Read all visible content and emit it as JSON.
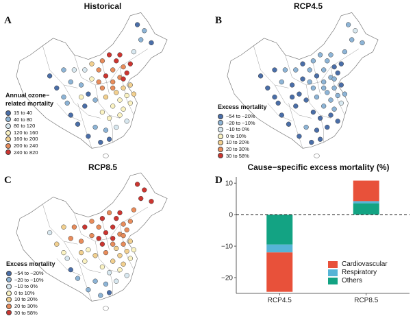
{
  "panels": {
    "A": {
      "letter": "A",
      "title": "Historical"
    },
    "B": {
      "letter": "B",
      "title": "RCP4.5"
    },
    "C": {
      "letter": "C",
      "title": "RCP8.5"
    },
    "D": {
      "letter": "D",
      "title": "Cause−specific excess mortality (%)"
    }
  },
  "legend_historical": {
    "title_lines": [
      "Annual ozone−",
      "related mortality"
    ],
    "items": [
      {
        "label": "15 to 40",
        "color": "#4a6ea8"
      },
      {
        "label": "40 to 80",
        "color": "#8db4d6"
      },
      {
        "label": "80 to 120",
        "color": "#d8e8f0"
      },
      {
        "label": "120 to 160",
        "color": "#fbf3c2"
      },
      {
        "label": "160 to 200",
        "color": "#f2d08f"
      },
      {
        "label": "200 to 240",
        "color": "#e88c5b"
      },
      {
        "label": "240 to 820",
        "color": "#cc3530"
      }
    ]
  },
  "legend_excess": {
    "title": "Excess mortality",
    "items": [
      {
        "label": "−54 to −20%",
        "color": "#4a6ea8"
      },
      {
        "label": "−20 to −10%",
        "color": "#8db4d6"
      },
      {
        "label": "−10 to 0%",
        "color": "#d8e8f0"
      },
      {
        "label": "0 to 10%",
        "color": "#fbf3c2"
      },
      {
        "label": "10 to 20%",
        "color": "#f2d08f"
      },
      {
        "label": "20 to 30%",
        "color": "#e88c5b"
      },
      {
        "label": "30 to 58%",
        "color": "#cc3530"
      }
    ]
  },
  "chart_data": {
    "type": "bar",
    "title": "Cause−specific excess mortality (%)",
    "categories": [
      "RCP4.5",
      "RCP8.5"
    ],
    "stacked": true,
    "series": [
      {
        "name": "Cardiovascular",
        "color": "#e8513a",
        "values": [
          -12.5,
          6.5
        ]
      },
      {
        "name": "Respiratory",
        "color": "#56b4d6",
        "values": [
          -2.5,
          0.7
        ]
      },
      {
        "name": "Others",
        "color": "#13a383",
        "values": [
          -9.5,
          3.6
        ]
      }
    ],
    "stack_order": [
      "Others",
      "Respiratory",
      "Cardiovascular"
    ],
    "ylim": [
      -25,
      12
    ],
    "yticks": [
      "10",
      "0",
      "−10",
      "−20"
    ],
    "ytick_values": [
      10,
      0,
      -10,
      -20
    ],
    "reference_line": {
      "value": 0,
      "style": "dashed"
    },
    "legend_position": "bottom-right"
  }
}
